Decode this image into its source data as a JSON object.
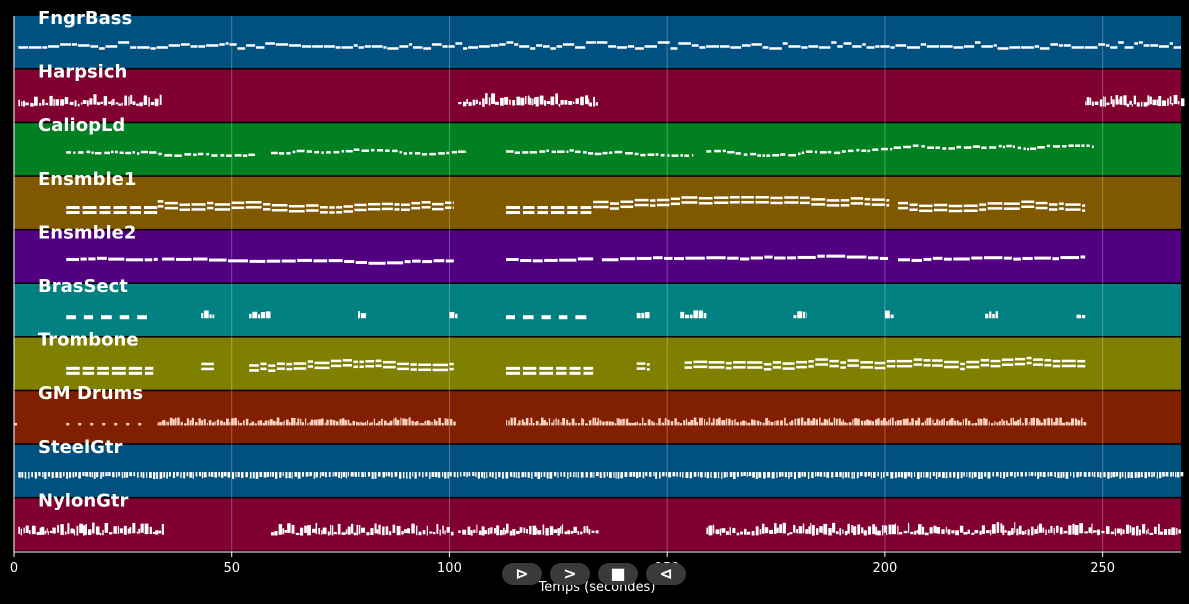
{
  "chart_data": {
    "type": "piano-roll",
    "xlabel": "Temps (secondes)",
    "xlim": [
      0,
      268
    ],
    "xticks": [
      0,
      50,
      100,
      150,
      200,
      250
    ],
    "grid": true,
    "tracks": [
      {
        "name": "FngrBass",
        "color": "#005180",
        "pattern": "bass",
        "segments": [
          [
            1,
            268
          ]
        ]
      },
      {
        "name": "Harpsich",
        "color": "#800030",
        "pattern": "dense",
        "segments": [
          [
            1,
            34
          ],
          [
            102,
            134
          ],
          [
            246,
            268
          ]
        ]
      },
      {
        "name": "CaliopLd",
        "color": "#008020",
        "pattern": "melody",
        "segments": [
          [
            12,
            56
          ],
          [
            59,
            104
          ],
          [
            113,
            156
          ],
          [
            159,
            248
          ]
        ]
      },
      {
        "name": "Ensmble1",
        "color": "#805800",
        "pattern": "chords",
        "segments": [
          [
            12,
            33
          ],
          [
            33,
            101
          ],
          [
            113,
            133
          ],
          [
            133,
            201
          ],
          [
            203,
            246
          ]
        ]
      },
      {
        "name": "Ensmble2",
        "color": "#500080",
        "pattern": "pad",
        "segments": [
          [
            12,
            33
          ],
          [
            34,
            101
          ],
          [
            113,
            133
          ],
          [
            135,
            201
          ],
          [
            203,
            246
          ]
        ]
      },
      {
        "name": "BrasSect",
        "color": "#008080",
        "pattern": "stabs",
        "segments": [
          [
            12,
            32
          ],
          [
            43,
            46
          ],
          [
            54,
            59
          ],
          [
            79,
            81
          ],
          [
            100,
            102
          ],
          [
            113,
            133
          ],
          [
            143,
            146
          ],
          [
            153,
            159
          ],
          [
            179,
            182
          ],
          [
            200,
            202
          ],
          [
            223,
            226
          ],
          [
            244,
            246
          ]
        ]
      },
      {
        "name": "Trombone",
        "color": "#808000",
        "pattern": "chords",
        "segments": [
          [
            12,
            32
          ],
          [
            43,
            46
          ],
          [
            54,
            101
          ],
          [
            113,
            133
          ],
          [
            143,
            146
          ],
          [
            154,
            246
          ]
        ]
      },
      {
        "name": "GM Drums",
        "color": "#802000",
        "pattern": "drums",
        "segments": [
          [
            0,
            1
          ],
          [
            12,
            30
          ],
          [
            33,
            101
          ],
          [
            113,
            134
          ],
          [
            134,
            246
          ]
        ]
      },
      {
        "name": "SteelGtr",
        "color": "#005180",
        "pattern": "strum",
        "segments": [
          [
            1,
            268
          ]
        ]
      },
      {
        "name": "NylonGtr",
        "color": "#800030",
        "pattern": "dense",
        "segments": [
          [
            1,
            34
          ],
          [
            59,
            101
          ],
          [
            102,
            134
          ],
          [
            159,
            268
          ]
        ]
      }
    ]
  },
  "player": {
    "rewind": "⊳",
    "play": ">",
    "stop": "■",
    "back": "⊲"
  }
}
